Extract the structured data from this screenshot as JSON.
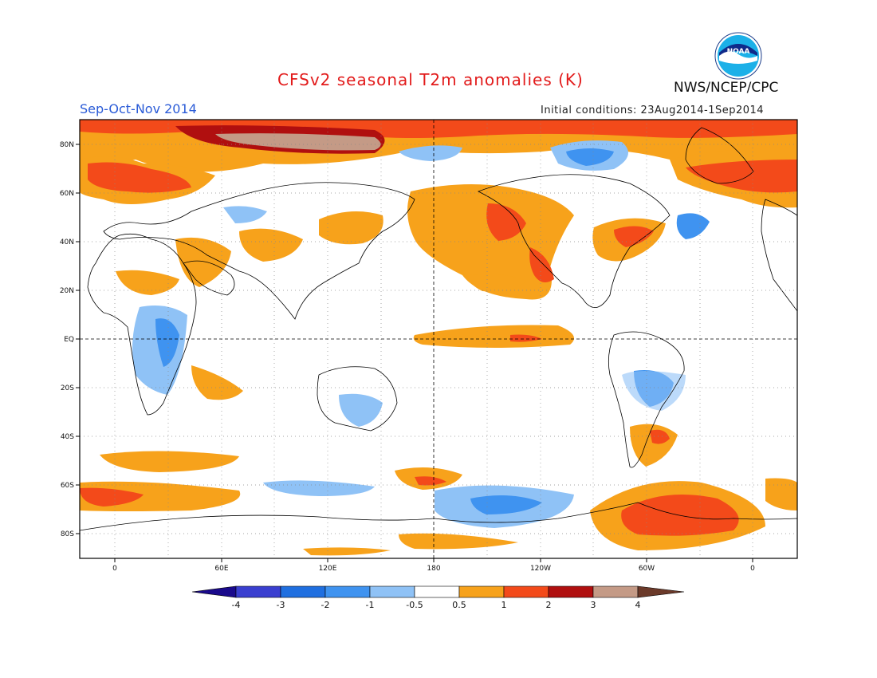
{
  "header": {
    "title": "CFSv2 seasonal T2m anomalies (K)",
    "season": "Sep-Oct-Nov 2014",
    "initial_conditions": "Initial conditions: 23Aug2014-1Sep2014",
    "agency": "NWS/NCEP/CPC",
    "logo_text": "NOAA"
  },
  "map": {
    "lat_labels": [
      "80N",
      "60N",
      "40N",
      "20N",
      "EQ",
      "20S",
      "40S",
      "60S",
      "80S"
    ],
    "lon_labels": [
      "0",
      "60E",
      "120E",
      "180",
      "120W",
      "60W",
      "0"
    ]
  },
  "colorbar": {
    "labels": [
      "-4",
      "-3",
      "-2",
      "-1",
      "-0.5",
      "0.5",
      "1",
      "2",
      "3",
      "4"
    ],
    "colors": [
      "#1a0a8c",
      "#3a3fd0",
      "#1f6fe0",
      "#3f93f0",
      "#8fc2f6",
      "#ffffff",
      "#f7a21b",
      "#f34a1a",
      "#b00f0f",
      "#c49a86",
      "#6b3a2a"
    ]
  },
  "icons": [
    "noaa-logo-icon"
  ]
}
